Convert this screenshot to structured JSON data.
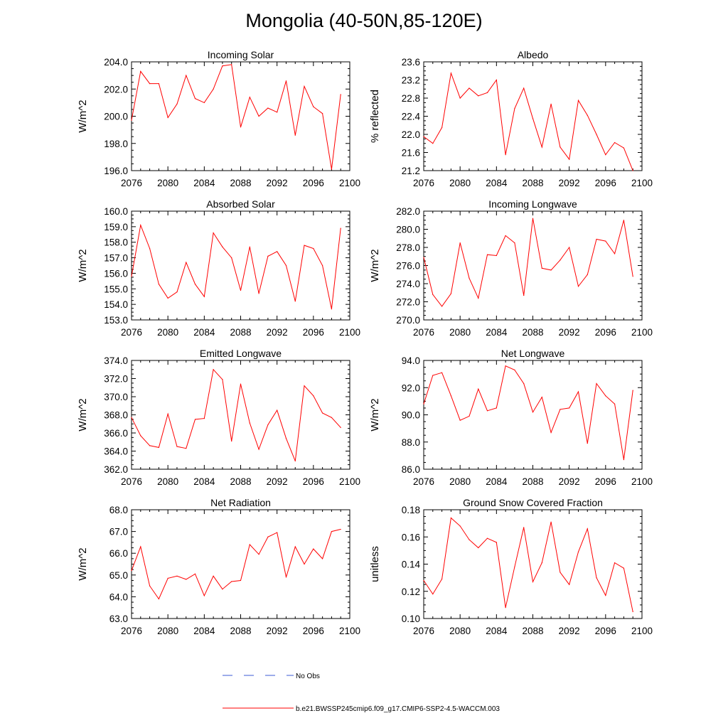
{
  "title": "Mongolia (40-50N,85-120E)",
  "legend": [
    {
      "label": "No Obs",
      "color": "#3b5bd6",
      "style": "dashed"
    },
    {
      "label": "b.e21.BWSSP245cmip6.f09_g17.CMIP6-SSP2-4.5-WACCM.003",
      "color": "#ff0000",
      "style": "solid"
    }
  ],
  "chart_data": [
    {
      "type": "line",
      "title": "Incoming Solar",
      "ylabel": "W/m^2",
      "xlim": [
        2076,
        2100
      ],
      "ylim": [
        196,
        204
      ],
      "xticks": [
        "2076",
        "2080",
        "2084",
        "2088",
        "2092",
        "2096",
        "2100"
      ],
      "yticks": [
        "196.0",
        "198.0",
        "200.0",
        "202.0",
        "204.0"
      ],
      "x": [
        2076,
        2077,
        2078,
        2079,
        2080,
        2081,
        2082,
        2083,
        2084,
        2085,
        2086,
        2087,
        2088,
        2089,
        2090,
        2091,
        2092,
        2093,
        2094,
        2095,
        2096,
        2097,
        2098,
        2099
      ],
      "series": [
        {
          "name": "b.e21.BWSSP245cmip6.f09_g17.CMIP6-SSP2-4.5-WACCM.003",
          "values": [
            199.7,
            203.3,
            202.4,
            202.4,
            199.9,
            200.9,
            203.0,
            201.3,
            201.0,
            202.0,
            203.7,
            203.8,
            199.2,
            201.4,
            200.0,
            200.6,
            200.3,
            202.6,
            198.6,
            202.2,
            200.7,
            200.2,
            196.1,
            201.6
          ]
        }
      ]
    },
    {
      "type": "line",
      "title": "Albedo",
      "ylabel": "% reflected",
      "xlim": [
        2076,
        2100
      ],
      "ylim": [
        21.2,
        23.6
      ],
      "xticks": [
        "2076",
        "2080",
        "2084",
        "2088",
        "2092",
        "2096",
        "2100"
      ],
      "yticks": [
        "21.2",
        "21.6",
        "22.0",
        "22.4",
        "22.8",
        "23.2",
        "23.6"
      ],
      "x": [
        2076,
        2077,
        2078,
        2079,
        2080,
        2081,
        2082,
        2083,
        2084,
        2085,
        2086,
        2087,
        2088,
        2089,
        2090,
        2091,
        2092,
        2093,
        2094,
        2095,
        2096,
        2097,
        2098,
        2099
      ],
      "series": [
        {
          "name": "b.e21.BWSSP245cmip6.f09_g17.CMIP6-SSP2-4.5-WACCM.003",
          "values": [
            21.95,
            21.8,
            22.15,
            23.35,
            22.8,
            23.02,
            22.85,
            22.92,
            23.2,
            21.55,
            22.57,
            23.02,
            22.35,
            21.72,
            22.67,
            21.72,
            21.45,
            22.75,
            22.42,
            22.0,
            21.55,
            21.82,
            21.7,
            21.2
          ]
        }
      ]
    },
    {
      "type": "line",
      "title": "Absorbed Solar",
      "ylabel": "W/m^2",
      "xlim": [
        2076,
        2100
      ],
      "ylim": [
        153,
        160
      ],
      "xticks": [
        "2076",
        "2080",
        "2084",
        "2088",
        "2092",
        "2096",
        "2100"
      ],
      "yticks": [
        "153.0",
        "154.0",
        "155.0",
        "156.0",
        "157.0",
        "158.0",
        "159.0",
        "160.0"
      ],
      "x": [
        2076,
        2077,
        2078,
        2079,
        2080,
        2081,
        2082,
        2083,
        2084,
        2085,
        2086,
        2087,
        2088,
        2089,
        2090,
        2091,
        2092,
        2093,
        2094,
        2095,
        2096,
        2097,
        2098,
        2099
      ],
      "series": [
        {
          "name": "b.e21.BWSSP245cmip6.f09_g17.CMIP6-SSP2-4.5-WACCM.003",
          "values": [
            155.8,
            159.1,
            157.6,
            155.3,
            154.4,
            154.8,
            156.7,
            155.3,
            154.5,
            158.6,
            157.7,
            157.0,
            154.9,
            157.7,
            154.7,
            157.1,
            157.4,
            156.5,
            154.2,
            157.8,
            157.6,
            156.5,
            153.7,
            158.9
          ]
        }
      ]
    },
    {
      "type": "line",
      "title": "Incoming Longwave",
      "ylabel": "W/m^2",
      "xlim": [
        2076,
        2100
      ],
      "ylim": [
        270,
        282
      ],
      "xticks": [
        "2076",
        "2080",
        "2084",
        "2088",
        "2092",
        "2096",
        "2100"
      ],
      "yticks": [
        "270.0",
        "272.0",
        "274.0",
        "276.0",
        "278.0",
        "280.0",
        "282.0"
      ],
      "x": [
        2076,
        2077,
        2078,
        2079,
        2080,
        2081,
        2082,
        2083,
        2084,
        2085,
        2086,
        2087,
        2088,
        2089,
        2090,
        2091,
        2092,
        2093,
        2094,
        2095,
        2096,
        2097,
        2098,
        2099
      ],
      "series": [
        {
          "name": "b.e21.BWSSP245cmip6.f09_g17.CMIP6-SSP2-4.5-WACCM.003",
          "values": [
            276.9,
            272.8,
            271.5,
            272.9,
            278.5,
            274.6,
            272.4,
            277.2,
            277.1,
            279.3,
            278.5,
            272.7,
            281.2,
            275.7,
            275.5,
            276.6,
            278.0,
            273.7,
            275.0,
            278.9,
            278.7,
            277.3,
            281.0,
            274.8
          ]
        }
      ]
    },
    {
      "type": "line",
      "title": "Emitted Longwave",
      "ylabel": "W/m^2",
      "xlim": [
        2076,
        2100
      ],
      "ylim": [
        362,
        374
      ],
      "xticks": [
        "2076",
        "2080",
        "2084",
        "2088",
        "2092",
        "2096",
        "2100"
      ],
      "yticks": [
        "362.0",
        "364.0",
        "366.0",
        "368.0",
        "370.0",
        "372.0",
        "374.0"
      ],
      "x": [
        2076,
        2077,
        2078,
        2079,
        2080,
        2081,
        2082,
        2083,
        2084,
        2085,
        2086,
        2087,
        2088,
        2089,
        2090,
        2091,
        2092,
        2093,
        2094,
        2095,
        2096,
        2097,
        2098,
        2099
      ],
      "series": [
        {
          "name": "b.e21.BWSSP245cmip6.f09_g17.CMIP6-SSP2-4.5-WACCM.003",
          "values": [
            367.7,
            365.7,
            364.6,
            364.4,
            368.1,
            364.5,
            364.3,
            367.5,
            367.6,
            373.0,
            371.9,
            365.1,
            371.4,
            367.1,
            364.2,
            366.9,
            368.5,
            365.4,
            362.9,
            371.2,
            370.1,
            368.2,
            367.7,
            366.6
          ]
        }
      ]
    },
    {
      "type": "line",
      "title": "Net Longwave",
      "ylabel": "W/m^2",
      "xlim": [
        2076,
        2100
      ],
      "ylim": [
        86,
        94
      ],
      "xticks": [
        "2076",
        "2080",
        "2084",
        "2088",
        "2092",
        "2096",
        "2100"
      ],
      "yticks": [
        "86.0",
        "88.0",
        "90.0",
        "92.0",
        "94.0"
      ],
      "x": [
        2076,
        2077,
        2078,
        2079,
        2080,
        2081,
        2082,
        2083,
        2084,
        2085,
        2086,
        2087,
        2088,
        2089,
        2090,
        2091,
        2092,
        2093,
        2094,
        2095,
        2096,
        2097,
        2098,
        2099
      ],
      "series": [
        {
          "name": "b.e21.BWSSP245cmip6.f09_g17.CMIP6-SSP2-4.5-WACCM.003",
          "values": [
            90.8,
            92.9,
            93.1,
            91.4,
            89.6,
            89.9,
            91.9,
            90.3,
            90.5,
            93.6,
            93.3,
            92.3,
            90.2,
            91.3,
            88.7,
            90.4,
            90.5,
            91.7,
            87.9,
            92.3,
            91.4,
            90.8,
            86.7,
            91.8
          ]
        }
      ]
    },
    {
      "type": "line",
      "title": "Net Radiation",
      "ylabel": "W/m^2",
      "xlim": [
        2076,
        2100
      ],
      "ylim": [
        63,
        68
      ],
      "xticks": [
        "2076",
        "2080",
        "2084",
        "2088",
        "2092",
        "2096",
        "2100"
      ],
      "yticks": [
        "63.0",
        "64.0",
        "65.0",
        "66.0",
        "67.0",
        "68.0"
      ],
      "x": [
        2076,
        2077,
        2078,
        2079,
        2080,
        2081,
        2082,
        2083,
        2084,
        2085,
        2086,
        2087,
        2088,
        2089,
        2090,
        2091,
        2092,
        2093,
        2094,
        2095,
        2096,
        2097,
        2098,
        2099
      ],
      "series": [
        {
          "name": "b.e21.BWSSP245cmip6.f09_g17.CMIP6-SSP2-4.5-WACCM.003",
          "values": [
            65.2,
            66.3,
            64.5,
            63.9,
            64.85,
            64.95,
            64.8,
            65.05,
            64.05,
            64.95,
            64.35,
            64.7,
            64.75,
            66.4,
            65.95,
            66.75,
            66.95,
            64.9,
            66.3,
            65.5,
            66.2,
            65.75,
            67.0,
            67.1
          ]
        }
      ]
    },
    {
      "type": "line",
      "title": "Ground Snow Covered Fraction",
      "ylabel": "unitless",
      "xlim": [
        2076,
        2100
      ],
      "ylim": [
        0.1,
        0.18
      ],
      "xticks": [
        "2076",
        "2080",
        "2084",
        "2088",
        "2092",
        "2096",
        "2100"
      ],
      "yticks": [
        "0.10",
        "0.12",
        "0.14",
        "0.16",
        "0.18"
      ],
      "x": [
        2076,
        2077,
        2078,
        2079,
        2080,
        2081,
        2082,
        2083,
        2084,
        2085,
        2086,
        2087,
        2088,
        2089,
        2090,
        2091,
        2092,
        2093,
        2094,
        2095,
        2096,
        2097,
        2098,
        2099
      ],
      "series": [
        {
          "name": "b.e21.BWSSP245cmip6.f09_g17.CMIP6-SSP2-4.5-WACCM.003",
          "values": [
            0.128,
            0.118,
            0.129,
            0.174,
            0.168,
            0.158,
            0.152,
            0.159,
            0.156,
            0.108,
            0.138,
            0.167,
            0.127,
            0.141,
            0.171,
            0.134,
            0.125,
            0.149,
            0.166,
            0.13,
            0.117,
            0.141,
            0.137,
            0.105
          ]
        }
      ]
    }
  ]
}
